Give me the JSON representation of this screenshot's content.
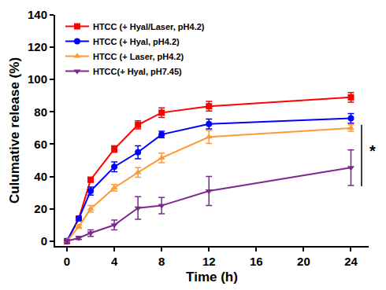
{
  "chart_data": {
    "type": "line",
    "x_label": "Time (h)",
    "y_label": "Culumative release (%)",
    "x": [
      0,
      1,
      2,
      4,
      6,
      8,
      12,
      24
    ],
    "xlim": [
      -1,
      25.5
    ],
    "xticks": [
      0,
      4,
      8,
      12,
      16,
      20,
      24
    ],
    "ylim": [
      -3,
      140
    ],
    "yticks": [
      0,
      20,
      40,
      60,
      80,
      100,
      120,
      140
    ],
    "grid": false,
    "legend": "top-left",
    "series": [
      {
        "name": "HTCC (+ Hyal/Laser, pH4.2)",
        "color": "#ff0000",
        "marker": "square",
        "values": [
          0,
          14,
          38,
          57,
          72,
          79.5,
          83.5,
          89
        ],
        "errors": [
          1,
          1,
          1.5,
          2,
          2.5,
          3,
          3,
          3
        ]
      },
      {
        "name": "HTCC (+ Hyal, pH4.2)",
        "color": "#0000ff",
        "marker": "circle",
        "values": [
          0,
          14,
          31,
          46,
          55,
          66,
          72.5,
          76
        ],
        "errors": [
          1,
          1,
          2.5,
          3,
          4,
          2,
          3,
          3
        ]
      },
      {
        "name": "HTCC (+ Laser, pH4.2)",
        "color": "#ff9933",
        "marker": "triangle-up",
        "values": [
          0,
          9,
          20,
          33,
          42.5,
          51.5,
          64.5,
          70
        ],
        "errors": [
          1,
          1,
          2,
          2,
          3,
          3,
          4,
          2
        ]
      },
      {
        "name": "HTCC(+ Hyal, pH7.45)",
        "color": "#7b2a8c",
        "marker": "triangle-down",
        "values": [
          0,
          2,
          5,
          10,
          20.5,
          22,
          31,
          45.5
        ],
        "errors": [
          1,
          1,
          2,
          3,
          7,
          5,
          9,
          11
        ]
      }
    ],
    "annotations": [
      {
        "text": "*",
        "x": 25.4,
        "y": 56,
        "line_x": 24.9,
        "y0": 34,
        "y1": 72
      }
    ]
  }
}
